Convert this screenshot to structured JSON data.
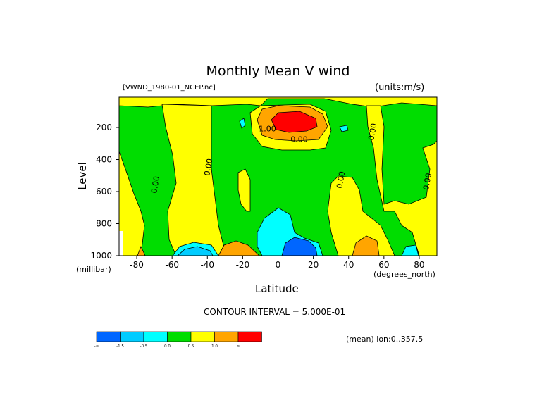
{
  "chart_data": {
    "type": "heatmap",
    "title": "Monthly Mean V wind",
    "dataset": "[VWND_1980-01_NCEP.nc]",
    "units": "(units:m/s)",
    "xlabel": "Latitude",
    "ylabel": "Level",
    "x_unit": "(degrees_north)",
    "y_unit": "(millibar)",
    "xlim": [
      -90,
      90
    ],
    "ylim": [
      1000,
      30
    ],
    "y_reversed": true,
    "x_ticks": [
      {
        "value": -80,
        "label": "-80"
      },
      {
        "value": -60,
        "label": "-60"
      },
      {
        "value": -40,
        "label": "-40"
      },
      {
        "value": -20,
        "label": "-20"
      },
      {
        "value": 0,
        "label": "0"
      },
      {
        "value": 20,
        "label": "20"
      },
      {
        "value": 40,
        "label": "40"
      },
      {
        "value": 60,
        "label": "60"
      },
      {
        "value": 80,
        "label": "80"
      }
    ],
    "y_ticks": [
      {
        "value": 200,
        "label": "200"
      },
      {
        "value": 400,
        "label": "400"
      },
      {
        "value": 600,
        "label": "600"
      },
      {
        "value": 800,
        "label": "800"
      },
      {
        "value": 1000,
        "label": "1000"
      }
    ],
    "contour_interval_text": "CONTOUR INTERVAL = 5.000E-01",
    "footer_note": "(mean) lon:0..357.5",
    "legend": {
      "position": "bottom-left",
      "colors": [
        "#0066ff",
        "#00ccff",
        "#00ffff",
        "#00dd00",
        "#ffff00",
        "#ffa500",
        "#ff0000"
      ],
      "tick_labels": [
        "-∞",
        "-1.5",
        "-0.5",
        "0.0",
        "0.5",
        "1.0",
        "∞"
      ]
    },
    "contour_labels": [
      {
        "text": "1.00",
        "x": -6,
        "y": 225
      },
      {
        "text": "0.00",
        "x": 12,
        "y": 290
      },
      {
        "text": "0.00",
        "x": 55,
        "y": 230
      },
      {
        "text": "0.00",
        "x": -38,
        "y": 450
      },
      {
        "text": "0.00",
        "x": -68,
        "y": 560
      },
      {
        "text": "0.00",
        "x": 37,
        "y": 530
      },
      {
        "text": "0.00",
        "x": 86,
        "y": 540
      }
    ]
  }
}
